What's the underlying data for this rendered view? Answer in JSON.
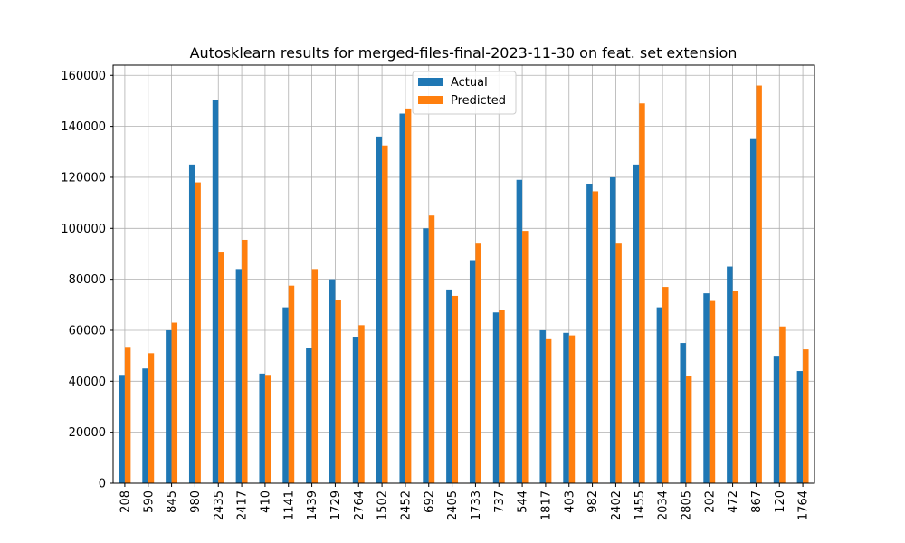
{
  "chart_data": {
    "type": "bar",
    "title": "Autosklearn results for merged-files-final-2023-11-30 on feat. set extension",
    "xlabel": "",
    "ylabel": "",
    "ylim": [
      0,
      164000
    ],
    "yticks": [
      0,
      20000,
      40000,
      60000,
      80000,
      100000,
      120000,
      140000,
      160000
    ],
    "grid": true,
    "legend_position": "top-center",
    "categories": [
      "208",
      "590",
      "845",
      "980",
      "2435",
      "2417",
      "410",
      "1141",
      "1439",
      "1729",
      "2764",
      "1502",
      "2452",
      "692",
      "2405",
      "1733",
      "737",
      "544",
      "1817",
      "403",
      "982",
      "2402",
      "1455",
      "2034",
      "2805",
      "202",
      "472",
      "867",
      "120",
      "1764"
    ],
    "series": [
      {
        "name": "Actual",
        "color": "#1f77b4",
        "values": [
          42500,
          45000,
          60000,
          125000,
          150500,
          84000,
          43000,
          69000,
          53000,
          80000,
          57500,
          136000,
          145000,
          100000,
          76000,
          87500,
          67000,
          119000,
          60000,
          59000,
          117500,
          120000,
          125000,
          69000,
          55000,
          74500,
          85000,
          135000,
          50000,
          44000
        ]
      },
      {
        "name": "Predicted",
        "color": "#ff7f0e",
        "values": [
          53500,
          51000,
          63000,
          118000,
          90500,
          95500,
          42500,
          77500,
          84000,
          72000,
          62000,
          132500,
          147000,
          105000,
          73500,
          94000,
          68000,
          99000,
          56500,
          58000,
          114500,
          94000,
          149000,
          77000,
          42000,
          71500,
          75500,
          156000,
          61500,
          52500
        ]
      }
    ]
  }
}
